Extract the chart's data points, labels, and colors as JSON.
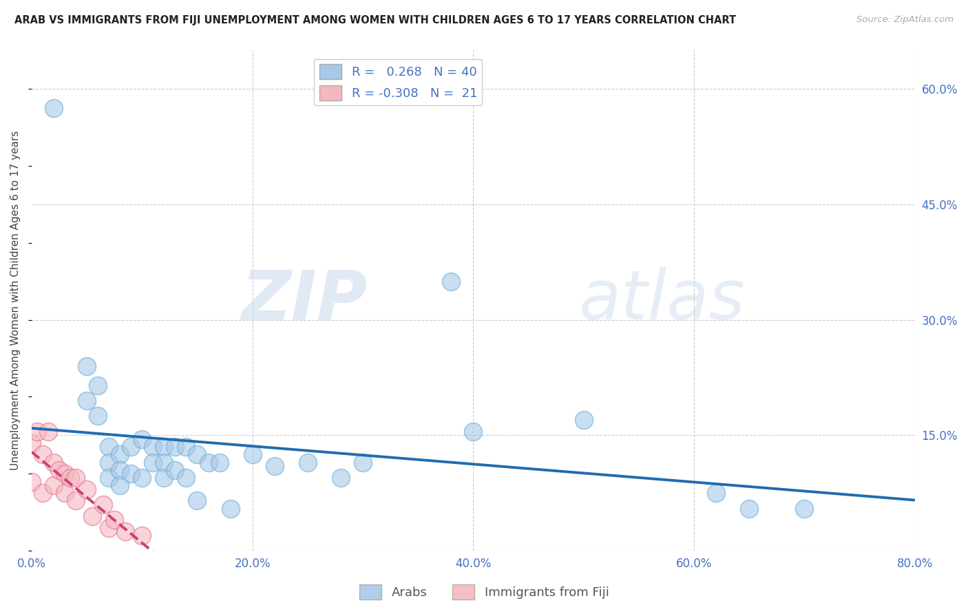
{
  "title": "ARAB VS IMMIGRANTS FROM FIJI UNEMPLOYMENT AMONG WOMEN WITH CHILDREN AGES 6 TO 17 YEARS CORRELATION CHART",
  "source": "Source: ZipAtlas.com",
  "ylabel": "Unemployment Among Women with Children Ages 6 to 17 years",
  "xlim": [
    0.0,
    0.8
  ],
  "ylim": [
    0.0,
    0.65
  ],
  "xticks": [
    0.0,
    0.1,
    0.2,
    0.3,
    0.4,
    0.5,
    0.6,
    0.7,
    0.8
  ],
  "xticklabels": [
    "0.0%",
    "",
    "20.0%",
    "",
    "40.0%",
    "",
    "60.0%",
    "",
    "80.0%"
  ],
  "yticks_right": [
    0.0,
    0.15,
    0.3,
    0.45,
    0.6
  ],
  "yticklabels_right": [
    "",
    "15.0%",
    "30.0%",
    "45.0%",
    "60.0%"
  ],
  "watermark_zip": "ZIP",
  "watermark_atlas": "atlas",
  "background_color": "#ffffff",
  "grid_color": "#cccccc",
  "arab_color": "#a8c8e8",
  "arab_edge_color": "#6baed6",
  "fiji_color": "#f4b8c0",
  "fiji_edge_color": "#e87090",
  "arab_line_color": "#1f6cb0",
  "fiji_line_color": "#d04070",
  "arab_R": 0.268,
  "arab_N": 40,
  "fiji_R": -0.308,
  "fiji_N": 21,
  "arab_scatter_x": [
    0.02,
    0.05,
    0.05,
    0.06,
    0.06,
    0.07,
    0.07,
    0.07,
    0.08,
    0.08,
    0.08,
    0.09,
    0.09,
    0.1,
    0.1,
    0.11,
    0.11,
    0.12,
    0.12,
    0.12,
    0.13,
    0.13,
    0.14,
    0.14,
    0.15,
    0.15,
    0.16,
    0.17,
    0.18,
    0.2,
    0.22,
    0.25,
    0.28,
    0.3,
    0.38,
    0.4,
    0.5,
    0.62,
    0.65,
    0.7
  ],
  "arab_scatter_y": [
    0.575,
    0.24,
    0.195,
    0.215,
    0.175,
    0.135,
    0.115,
    0.095,
    0.125,
    0.105,
    0.085,
    0.135,
    0.1,
    0.145,
    0.095,
    0.135,
    0.115,
    0.135,
    0.115,
    0.095,
    0.135,
    0.105,
    0.135,
    0.095,
    0.125,
    0.065,
    0.115,
    0.115,
    0.055,
    0.125,
    0.11,
    0.115,
    0.095,
    0.115,
    0.35,
    0.155,
    0.17,
    0.075,
    0.055,
    0.055
  ],
  "fiji_scatter_x": [
    0.0,
    0.0,
    0.005,
    0.01,
    0.01,
    0.015,
    0.02,
    0.02,
    0.025,
    0.03,
    0.03,
    0.035,
    0.04,
    0.04,
    0.05,
    0.055,
    0.065,
    0.07,
    0.075,
    0.085,
    0.1
  ],
  "fiji_scatter_y": [
    0.14,
    0.09,
    0.155,
    0.125,
    0.075,
    0.155,
    0.115,
    0.085,
    0.105,
    0.1,
    0.075,
    0.095,
    0.095,
    0.065,
    0.08,
    0.045,
    0.06,
    0.03,
    0.04,
    0.025,
    0.02
  ]
}
